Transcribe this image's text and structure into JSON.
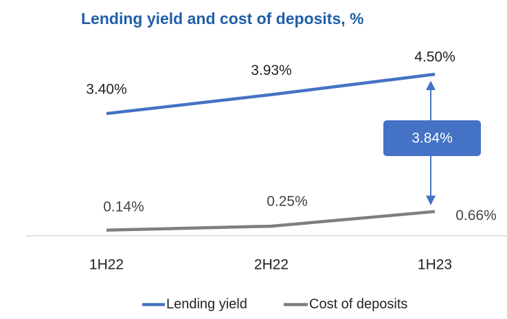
{
  "chart_data": {
    "type": "line",
    "title": "Lending yield and cost of deposits, %",
    "categories": [
      "1H22",
      "2H22",
      "1H23"
    ],
    "series": [
      {
        "name": "Lending yield",
        "color": "#4472c4",
        "values": [
          3.4,
          3.93,
          4.5
        ],
        "value_labels": [
          "3.40%",
          "3.93%",
          "4.50%"
        ]
      },
      {
        "name": "Cost of deposits",
        "color": "#7f7f7f",
        "values": [
          0.14,
          0.25,
          0.66
        ],
        "value_labels": [
          "0.14%",
          "0.25%",
          "0.66%"
        ]
      }
    ],
    "annotations": [
      {
        "text": "3.84%",
        "color": "#4472c4"
      }
    ],
    "legend": "bottom"
  }
}
